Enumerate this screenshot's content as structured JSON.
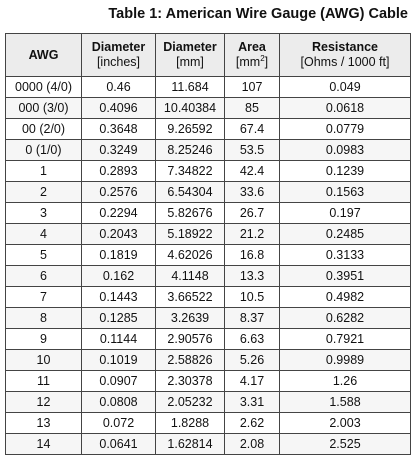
{
  "table": {
    "title": "Table 1: American Wire Gauge (AWG) Cable",
    "headers": [
      {
        "line1": "AWG",
        "line2": ""
      },
      {
        "line1": "Diameter",
        "line2": "[inches]"
      },
      {
        "line1": "Diameter",
        "line2": "[mm]"
      },
      {
        "line1": "Area",
        "line2_pre": "[mm",
        "line2_sup": "2",
        "line2_post": "]"
      },
      {
        "line1": "Resistance",
        "line2": "[Ohms / 1000 ft]"
      }
    ],
    "rows": [
      [
        "0000 (4/0)",
        "0.46",
        "11.684",
        "107",
        "0.049"
      ],
      [
        "000 (3/0)",
        "0.4096",
        "10.40384",
        "85",
        "0.0618"
      ],
      [
        "00 (2/0)",
        "0.3648",
        "9.26592",
        "67.4",
        "0.0779"
      ],
      [
        "0 (1/0)",
        "0.3249",
        "8.25246",
        "53.5",
        "0.0983"
      ],
      [
        "1",
        "0.2893",
        "7.34822",
        "42.4",
        "0.1239"
      ],
      [
        "2",
        "0.2576",
        "6.54304",
        "33.6",
        "0.1563"
      ],
      [
        "3",
        "0.2294",
        "5.82676",
        "26.7",
        "0.197"
      ],
      [
        "4",
        "0.2043",
        "5.18922",
        "21.2",
        "0.2485"
      ],
      [
        "5",
        "0.1819",
        "4.62026",
        "16.8",
        "0.3133"
      ],
      [
        "6",
        "0.162",
        "4.1148",
        "13.3",
        "0.3951"
      ],
      [
        "7",
        "0.1443",
        "3.66522",
        "10.5",
        "0.4982"
      ],
      [
        "8",
        "0.1285",
        "3.2639",
        "8.37",
        "0.6282"
      ],
      [
        "9",
        "0.1144",
        "2.90576",
        "6.63",
        "0.7921"
      ],
      [
        "10",
        "0.1019",
        "2.58826",
        "5.26",
        "0.9989"
      ],
      [
        "11",
        "0.0907",
        "2.30378",
        "4.17",
        "1.26"
      ],
      [
        "12",
        "0.0808",
        "2.05232",
        "3.31",
        "1.588"
      ],
      [
        "13",
        "0.072",
        "1.8288",
        "2.62",
        "2.003"
      ],
      [
        "14",
        "0.0641",
        "1.62814",
        "2.08",
        "2.525"
      ]
    ]
  }
}
